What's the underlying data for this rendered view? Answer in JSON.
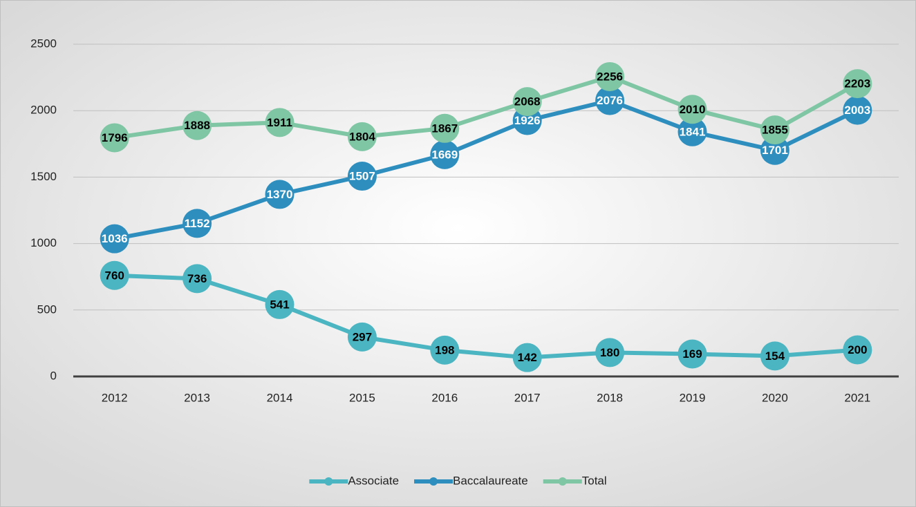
{
  "chart_data": {
    "type": "line",
    "categories": [
      "2012",
      "2013",
      "2014",
      "2015",
      "2016",
      "2017",
      "2018",
      "2019",
      "2020",
      "2021"
    ],
    "series": [
      {
        "name": "Associate",
        "color": "#4bb5c1",
        "label_color": "#000000",
        "values": [
          760,
          736,
          541,
          297,
          198,
          142,
          180,
          169,
          154,
          200
        ]
      },
      {
        "name": "Baccalaureate",
        "color": "#2e8fbf",
        "label_color": "#ffffff",
        "values": [
          1036,
          1152,
          1370,
          1507,
          1669,
          1926,
          2076,
          1841,
          1701,
          2003
        ]
      },
      {
        "name": "Total",
        "color": "#7fc6a4",
        "label_color": "#000000",
        "values": [
          1796,
          1888,
          1911,
          1804,
          1867,
          2068,
          2256,
          2010,
          1855,
          2203
        ]
      }
    ],
    "ylim": [
      0,
      2500
    ],
    "yticks": [
      0,
      500,
      1000,
      1500,
      2000,
      2500
    ],
    "grid": true,
    "legend": "bottom"
  }
}
